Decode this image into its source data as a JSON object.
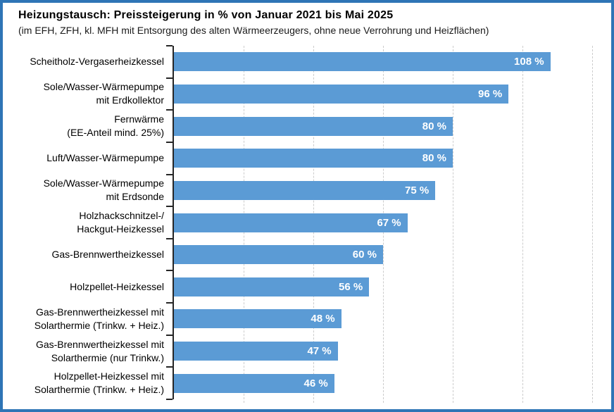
{
  "chart_data": {
    "type": "bar",
    "orientation": "horizontal",
    "title": "Heizungstausch: Preissteigerung in % von Januar 2021 bis Mai 2025",
    "subtitle": "(im EFH, ZFH, kl. MFH mit Entsorgung des alten Wärmeerzeugers, ohne neue Verrohrung und Heizflächen)",
    "categories": [
      "Scheitholz-Vergaserheizkessel",
      "Sole/Wasser-Wärmepumpe\nmit Erdkollektor",
      "Fernwärme\n(EE-Anteil mind. 25%)",
      "Luft/Wasser-Wärmepumpe",
      "Sole/Wasser-Wärmepumpe\nmit Erdsonde",
      "Holzhackschnitzel-/\nHackgut-Heizkessel",
      "Gas-Brennwertheizkessel",
      "Holzpellet-Heizkessel",
      "Gas-Brennwertheizkessel mit\nSolarthermie (Trinkw. + Heiz.)",
      "Gas-Brennwertheizkessel mit\nSolarthermie (nur Trinkw.)",
      "Holzpellet-Heizkessel mit\nSolarthermie (Trinkw. + Heiz.)"
    ],
    "values": [
      108,
      96,
      80,
      80,
      75,
      67,
      60,
      56,
      48,
      47,
      46
    ],
    "value_labels": [
      "108 %",
      "96 %",
      "80 %",
      "80 %",
      "75 %",
      "67 %",
      "60 %",
      "56 %",
      "48 %",
      "47 %",
      "46 %"
    ],
    "xlim": [
      0,
      120
    ],
    "gridlines": [
      20,
      40,
      60,
      80,
      100,
      120
    ],
    "grid_style": "dashed",
    "legend": "none",
    "xlabel": "",
    "ylabel": "",
    "bar_color": "#5B9BD5",
    "frame_color": "#2E75B6",
    "axis_color": "#262626",
    "value_label_color": "#ffffff"
  }
}
